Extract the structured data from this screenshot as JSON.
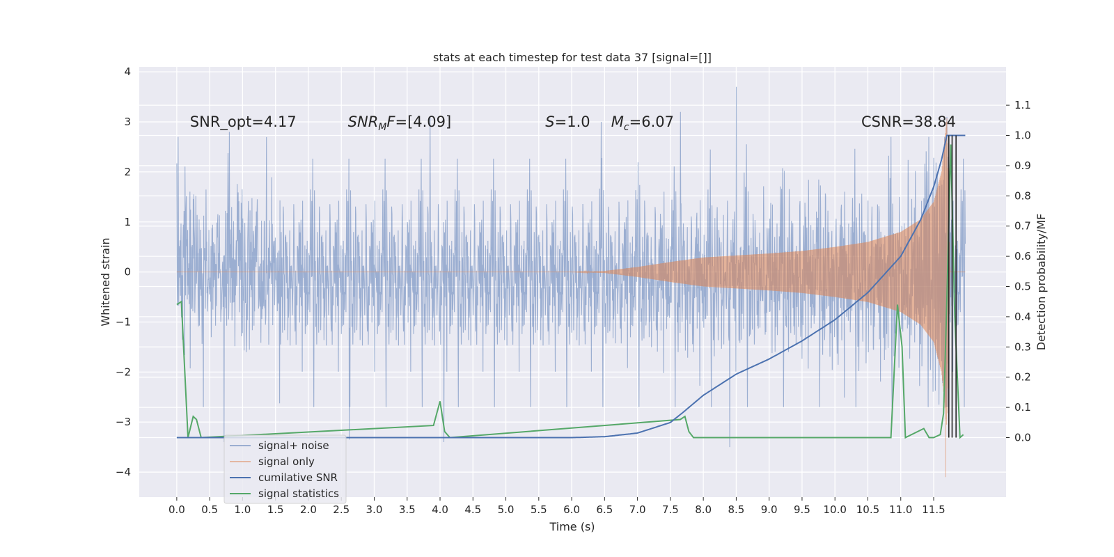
{
  "chart_data": {
    "type": "line",
    "title": "stats at each timestep for test data 37 [signal=[]]",
    "xlabel": "Time (s)",
    "ylabel_left": "Whitened strain",
    "ylabel_right": "Detection probability/MF",
    "xlim": [
      -0.57,
      12.6
    ],
    "ylim_left": [
      -4.5,
      4.1
    ],
    "ylim_right": [
      -0.197,
      1.227
    ],
    "x_ticks": [
      0.0,
      0.5,
      1.0,
      1.5,
      2.0,
      2.5,
      3.0,
      3.5,
      4.0,
      4.5,
      5.0,
      5.5,
      6.0,
      6.5,
      7.0,
      7.5,
      8.0,
      8.5,
      9.0,
      9.5,
      10.0,
      10.5,
      11.0,
      11.5
    ],
    "x_tick_labels": [
      "0.0",
      "0.5",
      "1.0",
      "1.5",
      "2.0",
      "2.5",
      "3.0",
      "3.5",
      "4.0",
      "4.5",
      "5.0",
      "5.5",
      "6.0",
      "6.5",
      "7.0",
      "7.5",
      "8.0",
      "8.5",
      "9.0",
      "9.5",
      "10.0",
      "10.5",
      "11.0",
      "11.5"
    ],
    "y_left_ticks": [
      -4,
      -3,
      -2,
      -1,
      0,
      1,
      2,
      3,
      4
    ],
    "y_left_tick_labels": [
      "−4",
      "−3",
      "−2",
      "−1",
      "0",
      "1",
      "2",
      "3",
      "4"
    ],
    "y_right_ticks": [
      0.0,
      0.1,
      0.2,
      0.3,
      0.4,
      0.5,
      0.6,
      0.7,
      0.8,
      0.9,
      1.0,
      1.1
    ],
    "y_right_tick_labels": [
      "0.0",
      "0.1",
      "0.2",
      "0.3",
      "0.4",
      "0.5",
      "0.6",
      "0.7",
      "0.8",
      "0.9",
      "1.0",
      "1.1"
    ],
    "grid": true,
    "legend_position": "lower-left",
    "annotations": [
      {
        "text": "SNR_opt=4.17",
        "x": 0.2,
        "y": 2.9
      },
      {
        "text": "SNR_MF=[4.09]",
        "x": 2.6,
        "y": 2.9
      },
      {
        "text": "S=1.0",
        "x": 5.6,
        "y": 2.9
      },
      {
        "text": "M_c=6.07",
        "x": 6.6,
        "y": 2.9
      },
      {
        "text": "CSNR=38.84",
        "x": 10.4,
        "y": 2.9
      }
    ],
    "series": [
      {
        "name": "signal+ noise",
        "axis": "left",
        "color": "#4c72b0",
        "opacity": 0.5,
        "description": "whitened noise with unit variance plus signal",
        "x_range": [
          0.0,
          11.98
        ],
        "typical_peak": 2.3,
        "outlier_peaks": [
          {
            "x": 0.02,
            "y": 2.7
          },
          {
            "x": 0.72,
            "y": -3.4
          },
          {
            "x": 0.8,
            "y": 2.8
          },
          {
            "x": 2.62,
            "y": -3.35
          },
          {
            "x": 3.85,
            "y": 3.1
          },
          {
            "x": 4.06,
            "y": -3.4
          },
          {
            "x": 6.45,
            "y": 3.0
          },
          {
            "x": 7.65,
            "y": 3.2
          },
          {
            "x": 8.4,
            "y": -3.5
          },
          {
            "x": 8.5,
            "y": 3.7
          },
          {
            "x": 11.7,
            "y": 3.1
          }
        ]
      },
      {
        "name": "signal only",
        "axis": "left",
        "color": "#dd8452",
        "opacity": 0.5,
        "description": "chirp envelope growing toward merger",
        "envelope": {
          "x": [
            0.0,
            6.0,
            6.5,
            7.0,
            7.5,
            8.0,
            8.5,
            9.0,
            9.5,
            10.0,
            10.5,
            11.0,
            11.3,
            11.5,
            11.62,
            11.7,
            11.75,
            11.98
          ],
          "amplitude": [
            0.0,
            0.0,
            0.02,
            0.1,
            0.2,
            0.29,
            0.33,
            0.37,
            0.42,
            0.5,
            0.6,
            0.8,
            1.05,
            1.4,
            2.0,
            3.1,
            0.0,
            0.0
          ]
        },
        "min_point": {
          "x": 11.68,
          "y": -4.1
        }
      },
      {
        "name": "cumilative SNR",
        "axis": "right",
        "color": "#4c72b0",
        "x": [
          0.0,
          6.0,
          6.5,
          7.0,
          7.5,
          7.7,
          8.0,
          8.5,
          9.0,
          9.5,
          10.0,
          10.5,
          11.0,
          11.3,
          11.5,
          11.62,
          11.7,
          11.98
        ],
        "y": [
          0.0,
          0.0,
          0.003,
          0.015,
          0.05,
          0.085,
          0.14,
          0.21,
          0.26,
          0.32,
          0.39,
          0.48,
          0.6,
          0.72,
          0.83,
          0.92,
          1.0,
          1.0
        ]
      },
      {
        "name": "signal statistics",
        "axis": "right",
        "color": "#55a868",
        "x": [
          0.0,
          0.07,
          0.17,
          0.25,
          0.3,
          0.37,
          3.9,
          4.0,
          4.07,
          4.15,
          7.65,
          7.72,
          7.78,
          7.85,
          10.8,
          10.85,
          10.95,
          11.02,
          11.07,
          11.35,
          11.43,
          11.5,
          11.6,
          11.65,
          11.7,
          11.76,
          11.82,
          11.9,
          11.95
        ],
        "y": [
          0.44,
          0.45,
          0.0,
          0.07,
          0.06,
          0.0,
          0.04,
          0.12,
          0.02,
          0.0,
          0.06,
          0.07,
          0.02,
          0.0,
          0.0,
          0.0,
          0.44,
          0.3,
          0.0,
          0.03,
          0.0,
          0.0,
          0.01,
          0.08,
          0.45,
          0.97,
          0.4,
          0.0,
          0.01
        ]
      }
    ],
    "vertical_markers": [
      {
        "x": 11.73,
        "color": "#262626"
      },
      {
        "x": 11.78,
        "color": "#262626"
      },
      {
        "x": 11.84,
        "color": "#262626"
      }
    ]
  }
}
